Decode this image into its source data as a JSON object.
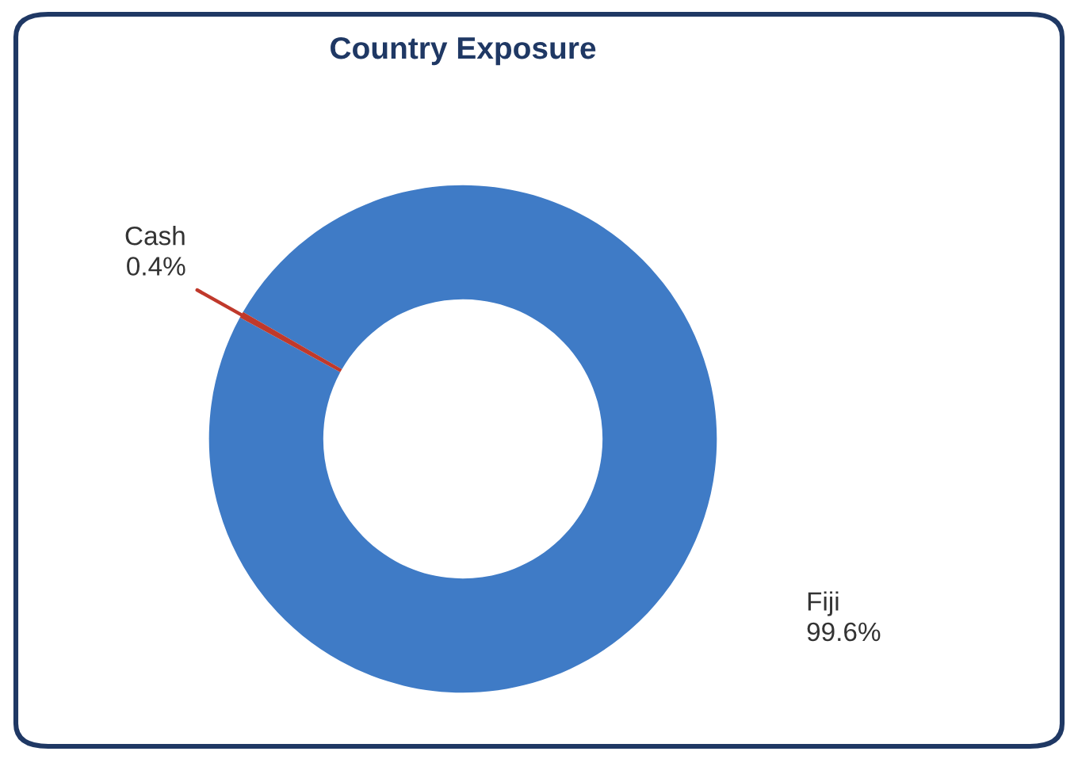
{
  "chart_data": {
    "type": "donut",
    "title": "Country Exposure",
    "categories": [
      "Fiji",
      "Cash"
    ],
    "values": [
      99.6,
      0.4
    ],
    "value_labels": [
      "99.6%",
      "0.4%"
    ],
    "colors": [
      "#3f7bc6",
      "#c0392b"
    ],
    "legend": false
  }
}
